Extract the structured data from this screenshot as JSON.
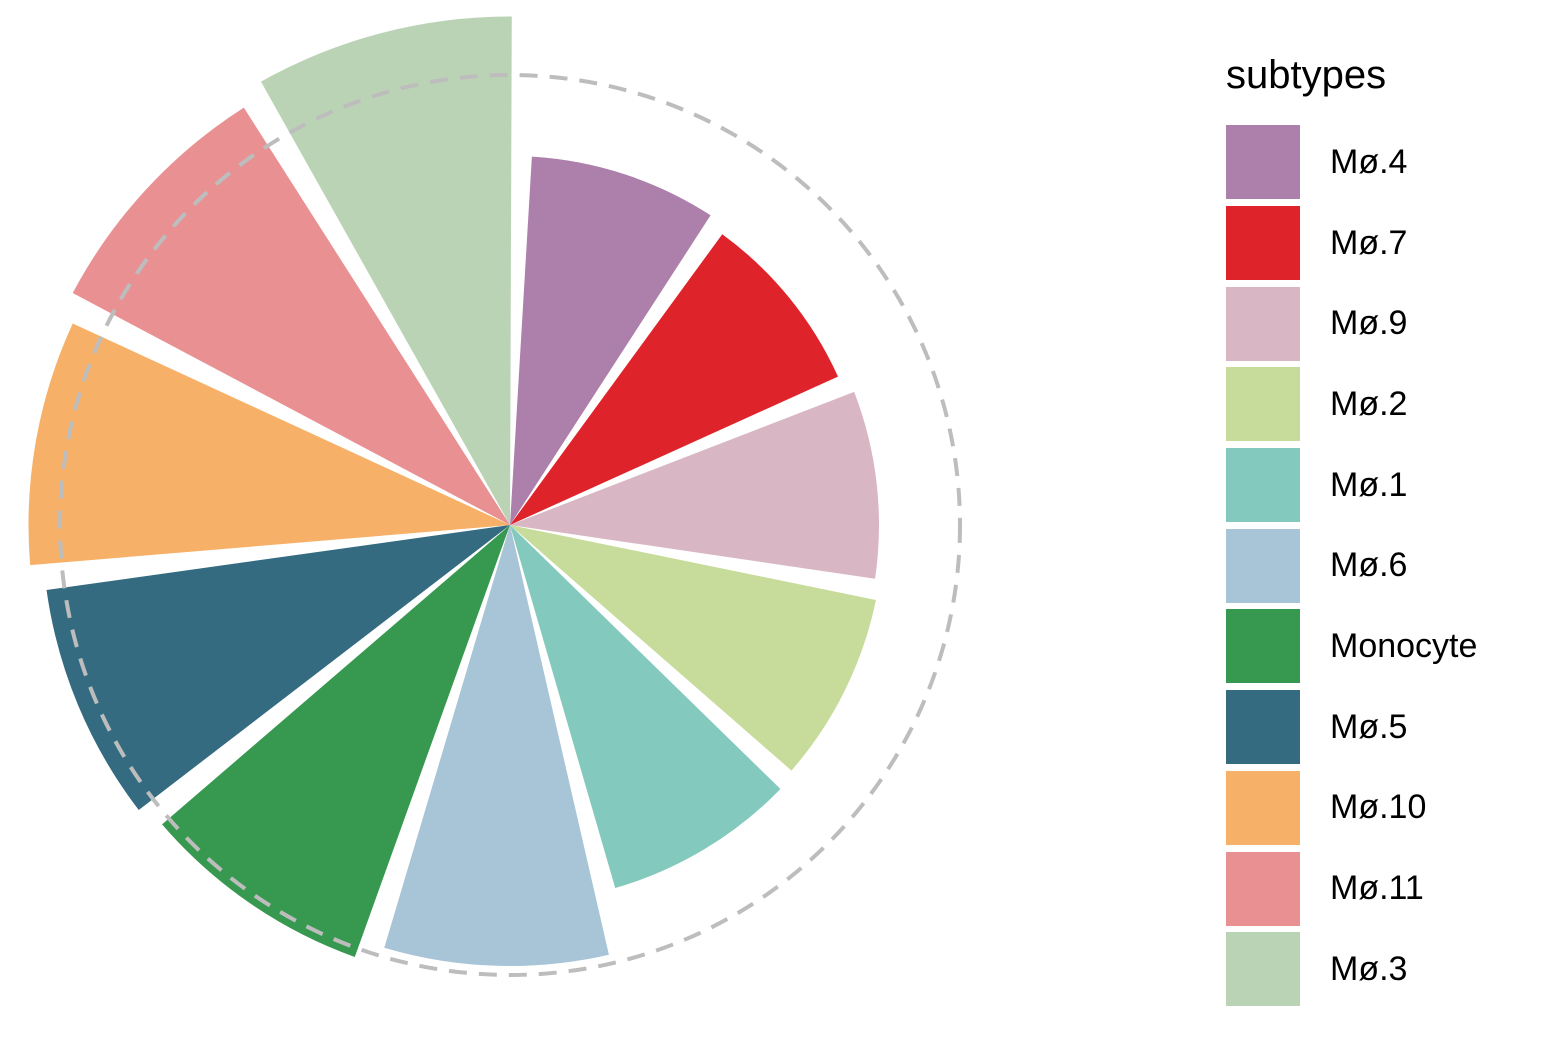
{
  "chart_data": {
    "type": "polar-bar",
    "title": "",
    "legend": {
      "title": "subtypes",
      "placement": "right"
    },
    "reference_circle": {
      "style": "dashed",
      "color": "#bdbdbd"
    },
    "slices": [
      {
        "name": "Mø.4",
        "value": 0.82,
        "color": "#ad7fab"
      },
      {
        "name": "Mø.7",
        "value": 0.8,
        "color": "#de242a"
      },
      {
        "name": "Mø.9",
        "value": 0.82,
        "color": "#d9b6c4"
      },
      {
        "name": "Mø.2",
        "value": 0.83,
        "color": "#c7dc9b"
      },
      {
        "name": "Mø.1",
        "value": 0.84,
        "color": "#83c9bd"
      },
      {
        "name": "Mø.6",
        "value": 0.98,
        "color": "#a8c4d7"
      },
      {
        "name": "Monocyte",
        "value": 1.02,
        "color": "#37984f"
      },
      {
        "name": "Mø.5",
        "value": 1.04,
        "color": "#346b80"
      },
      {
        "name": "Mø.10",
        "value": 1.07,
        "color": "#f6b067"
      },
      {
        "name": "Mø.11",
        "value": 1.1,
        "color": "#e99093"
      },
      {
        "name": "Mø.3",
        "value": 1.13,
        "color": "#bbd3b5"
      }
    ]
  }
}
